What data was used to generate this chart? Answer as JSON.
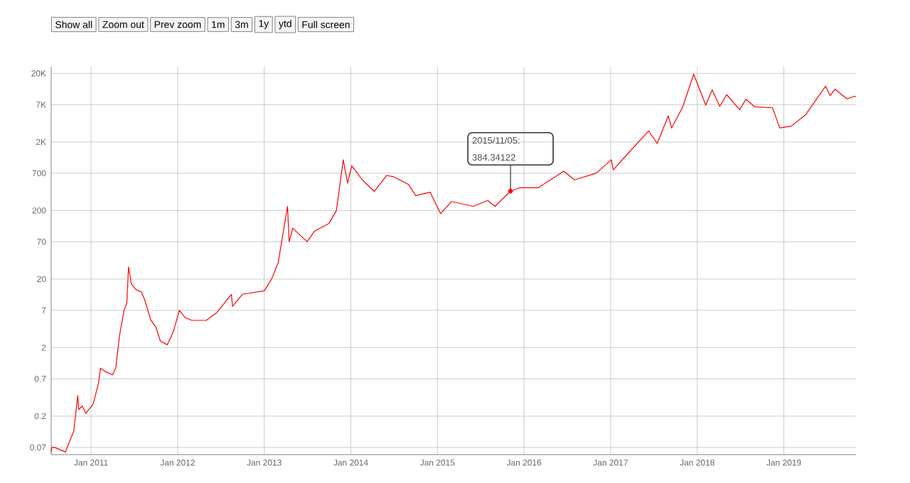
{
  "chart_data": {
    "type": "line",
    "color": "#ff0000",
    "log": "y",
    "grid": true,
    "x": [
      "2010-07-17",
      "2010-07-20",
      "2010-08-01",
      "2010-09-15",
      "2010-10-10",
      "2010-10-20",
      "2010-11-06",
      "2010-11-10",
      "2010-11-25",
      "2010-12-10",
      "2011-01-10",
      "2011-02-01",
      "2011-02-10",
      "2011-03-01",
      "2011-04-01",
      "2011-04-15",
      "2011-05-01",
      "2011-05-20",
      "2011-06-01",
      "2011-06-08",
      "2011-06-20",
      "2011-07-10",
      "2011-08-01",
      "2011-08-15",
      "2011-09-10",
      "2011-10-01",
      "2011-10-20",
      "2011-11-18",
      "2011-12-15",
      "2012-01-08",
      "2012-02-01",
      "2012-03-01",
      "2012-05-01",
      "2012-06-15",
      "2012-08-15",
      "2012-08-20",
      "2012-10-01",
      "2013-01-01",
      "2013-02-01",
      "2013-03-01",
      "2013-04-09",
      "2013-04-16",
      "2013-05-01",
      "2013-07-01",
      "2013-08-01",
      "2013-10-01",
      "2013-11-01",
      "2013-11-30",
      "2013-12-18",
      "2014-01-05",
      "2014-02-20",
      "2014-04-10",
      "2014-06-01",
      "2014-07-01",
      "2014-09-01",
      "2014-10-01",
      "2014-12-01",
      "2015-01-14",
      "2015-03-01",
      "2015-06-01",
      "2015-08-01",
      "2015-09-01",
      "2015-11-05",
      "2015-12-15",
      "2016-03-01",
      "2016-06-17",
      "2016-08-01",
      "2016-11-01",
      "2017-01-04",
      "2017-01-12",
      "2017-03-01",
      "2017-06-10",
      "2017-07-16",
      "2017-09-01",
      "2017-09-15",
      "2017-11-01",
      "2017-12-17",
      "2018-02-06",
      "2018-03-05",
      "2018-04-06",
      "2018-05-05",
      "2018-06-29",
      "2018-07-25",
      "2018-09-01",
      "2018-11-14",
      "2018-12-15",
      "2019-02-01",
      "2019-04-03",
      "2019-06-26",
      "2019-07-15",
      "2019-08-05",
      "2019-09-24",
      "2019-10-26",
      "2019-10-31"
    ],
    "values": [
      0.06,
      0.07,
      0.07,
      0.06,
      0.1,
      0.12,
      0.4,
      0.25,
      0.28,
      0.22,
      0.3,
      0.6,
      1.0,
      0.9,
      0.8,
      1.0,
      3.0,
      7,
      9,
      30,
      17,
      14,
      13,
      10,
      5,
      4,
      2.5,
      2.2,
      3.5,
      7,
      5.5,
      5,
      5,
      6.5,
      12,
      8,
      12,
      13.5,
      20,
      35,
      230,
      70,
      110,
      70,
      100,
      130,
      200,
      1100,
      500,
      900,
      550,
      380,
      650,
      620,
      480,
      330,
      370,
      180,
      270,
      230,
      280,
      230,
      384.34122,
      430,
      430,
      750,
      560,
      700,
      1100,
      780,
      1200,
      2900,
      1900,
      4800,
      3200,
      6500,
      19500,
      6900,
      11500,
      6600,
      9800,
      5900,
      8400,
      6500,
      6300,
      3200,
      3400,
      5000,
      13000,
      9500,
      11800,
      8500,
      9300,
      9100
    ],
    "xlim": [
      "2010-07-17",
      "2019-11-01"
    ],
    "xticks": [
      {
        "value": "2011-01-01",
        "label": "Jan 2011"
      },
      {
        "value": "2012-01-01",
        "label": "Jan 2012"
      },
      {
        "value": "2013-01-01",
        "label": "Jan 2013"
      },
      {
        "value": "2014-01-01",
        "label": "Jan 2014"
      },
      {
        "value": "2015-01-01",
        "label": "Jan 2015"
      },
      {
        "value": "2016-01-01",
        "label": "Jan 2016"
      },
      {
        "value": "2017-01-01",
        "label": "Jan 2017"
      },
      {
        "value": "2018-01-01",
        "label": "Jan 2018"
      },
      {
        "value": "2019-01-01",
        "label": "Jan 2019"
      }
    ],
    "ylim": [
      0.055,
      25000
    ],
    "yticks": [
      {
        "value": 20000,
        "label": "20K"
      },
      {
        "value": 7000,
        "label": "7K"
      },
      {
        "value": 2000,
        "label": "2K"
      },
      700,
      200,
      70,
      20,
      7,
      2,
      0.7,
      0.2,
      0.07
    ],
    "annotations": [
      "Show all",
      "Zoom out",
      "Prev zoom",
      "1m",
      "3m",
      "1y",
      "ytd",
      "Full screen",
      {
        "text": "2015/11/05: 384.34122",
        "x": "2015-11-05",
        "y": 384.34122
      }
    ]
  }
}
